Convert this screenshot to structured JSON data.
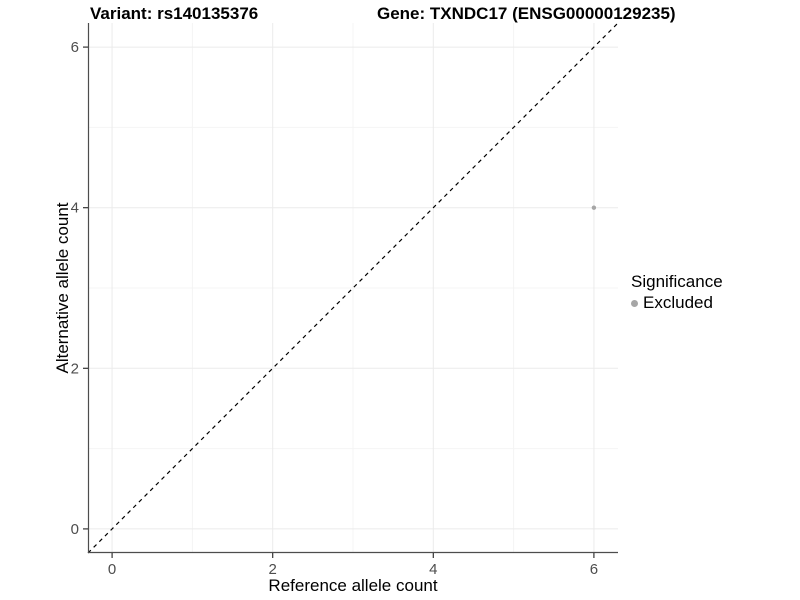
{
  "chart_data": {
    "type": "scatter",
    "title_left": "Variant: rs140135376",
    "title_right": "Gene: TXNDC17 (ENSG00000129235)",
    "xlabel": "Reference allele count",
    "ylabel": "Alternative allele count",
    "xlim": [
      -0.3,
      6.3
    ],
    "ylim": [
      -0.3,
      6.3
    ],
    "x_ticks": [
      0,
      2,
      4,
      6
    ],
    "y_ticks": [
      0,
      2,
      4,
      6
    ],
    "x_minor_gridlines": [
      1,
      3,
      5
    ],
    "y_minor_gridlines": [
      1,
      3,
      5
    ],
    "grid": true,
    "reference_line": {
      "type": "identity",
      "from": [
        -0.3,
        -0.3
      ],
      "to": [
        6.3,
        6.3
      ],
      "style": "dashed"
    },
    "series": [
      {
        "name": "Excluded",
        "points": [
          {
            "x": 6,
            "y": 4
          }
        ]
      }
    ],
    "legend": {
      "title": "Significance",
      "position": "right",
      "entries": [
        {
          "label": "Excluded"
        }
      ]
    }
  },
  "colors": {
    "background": "#ffffff",
    "grid_major": "#ebebeb",
    "grid_minor": "#f4f4f4",
    "axis_line": "#4d4d4d",
    "tick_mark": "#333333",
    "tick_label": "#4d4d4d",
    "reference_line": "#000000",
    "point": "#a6a6a6",
    "title_text": "#000000"
  }
}
